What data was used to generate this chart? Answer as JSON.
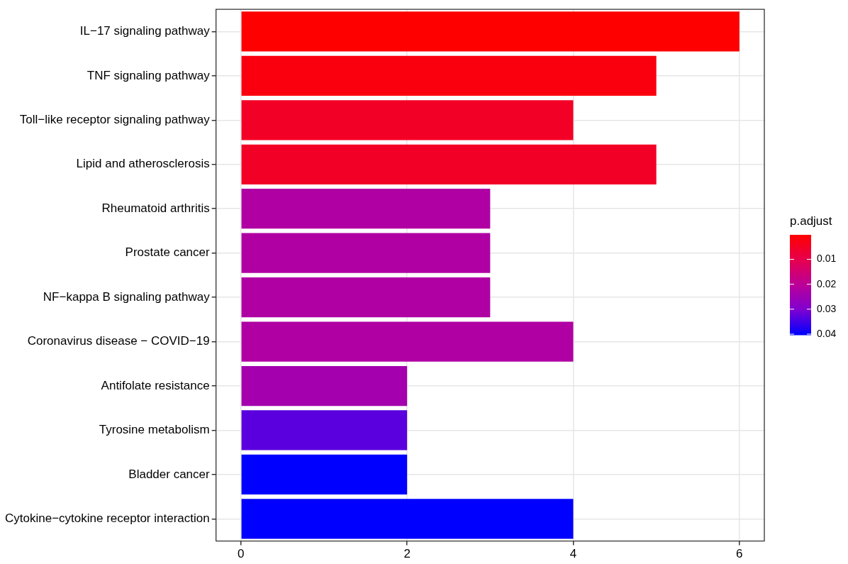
{
  "chart_data": {
    "type": "bar",
    "orientation": "horizontal",
    "clabel": "p.adjust",
    "categories": [
      "IL−17 signaling pathway",
      "TNF signaling pathway",
      "Toll−like receptor signaling pathway",
      "Lipid and atherosclerosis",
      "Rheumatoid arthritis",
      "Prostate cancer",
      "NF−kappa B signaling pathway",
      "Coronavirus disease − COVID−19",
      "Antifolate resistance",
      "Tyrosine metabolism",
      "Bladder cancer",
      "Cytokine−cytokine receptor interaction"
    ],
    "values": [
      6,
      5,
      4,
      5,
      3,
      3,
      3,
      4,
      2,
      2,
      2,
      4
    ],
    "cvalues": [
      0.0002,
      0.002,
      0.005,
      0.005,
      0.022,
      0.022,
      0.022,
      0.022,
      0.024,
      0.033,
      0.04,
      0.04
    ],
    "clim": [
      0.0002,
      0.04
    ],
    "cticks": [
      0.01,
      0.02,
      0.03,
      0.04
    ],
    "xlim": [
      -0.3,
      6.3
    ],
    "xticks": [
      0,
      2,
      4,
      6
    ],
    "grid": true,
    "legend": false
  }
}
